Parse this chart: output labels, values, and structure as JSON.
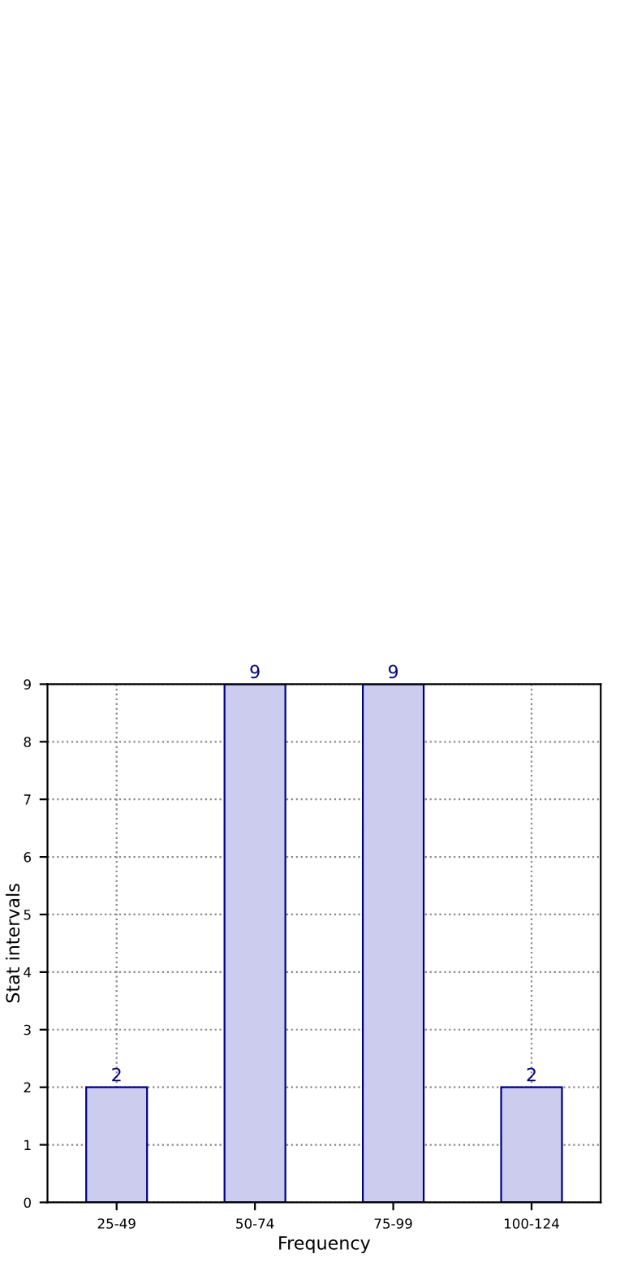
{
  "chart_data": {
    "type": "bar",
    "categories": [
      "25-49",
      "50-74",
      "75-99",
      "100-124"
    ],
    "values": [
      2,
      9,
      9,
      2
    ],
    "color": "#ccccee",
    "xlabel": "Frequency",
    "ylabel": "Stat intervals",
    "ylim": [
      0,
      9
    ],
    "yticks": [
      0,
      1,
      2,
      3,
      4,
      5,
      6,
      7,
      8,
      9
    ],
    "grid": true,
    "data_labels": true
  }
}
